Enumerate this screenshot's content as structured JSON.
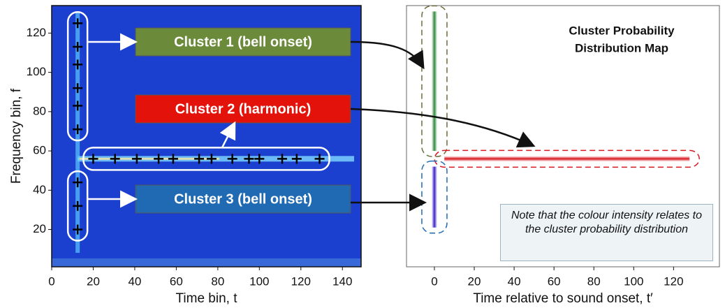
{
  "chart_data": [
    {
      "type": "scatter",
      "xlabel": "Time bin, t",
      "ylabel": "Frequency bin, f",
      "xlim": [
        0,
        149
      ],
      "ylim": [
        1,
        134
      ],
      "xticks": [
        0,
        20,
        40,
        60,
        80,
        100,
        120,
        140
      ],
      "yticks": [
        20,
        40,
        60,
        80,
        100,
        120
      ],
      "background": "#1b3fcf",
      "series": [
        {
          "name": "Cluster 1 (bell onset)",
          "color": "#6b8a3a",
          "x": [
            12.5,
            12.5,
            12.5,
            12.5,
            12.5,
            12.5
          ],
          "y": [
            125,
            113,
            104,
            92,
            83,
            71
          ]
        },
        {
          "name": "Cluster 2 (harmonic)",
          "color": "#e3120b",
          "x": [
            20,
            30.5,
            41,
            51.5,
            58.5,
            71,
            77,
            87,
            95,
            100,
            111,
            118,
            129
          ],
          "y": [
            56,
            56,
            56,
            56,
            56,
            56,
            56,
            56,
            56,
            56,
            56,
            56,
            56
          ]
        },
        {
          "name": "Cluster 3 (bell onset)",
          "color": "#1f6ab3",
          "x": [
            12.5,
            12.5,
            12.5
          ],
          "y": [
            44,
            32,
            20
          ]
        }
      ]
    },
    {
      "type": "distribution",
      "title": [
        "Cluster Probability",
        "Distribution Map"
      ],
      "xlabel": "Time relative to sound onset, t′",
      "xlim": [
        -14,
        143
      ],
      "ylim": [
        1,
        134
      ],
      "xticks": [
        0,
        20,
        40,
        60,
        80,
        100,
        120
      ],
      "note": "Note that the colour intensity relates to the cluster probability distribution",
      "regions": [
        {
          "color": "#2e8b3a",
          "t": [
            0,
            0
          ],
          "f": [
            60,
            131
          ]
        },
        {
          "color": "#d81820",
          "t": [
            5,
            128
          ],
          "f": [
            56,
            56
          ]
        },
        {
          "color": "#3a22c8",
          "t": [
            0,
            0
          ],
          "f": [
            21,
            52
          ]
        }
      ]
    }
  ]
}
